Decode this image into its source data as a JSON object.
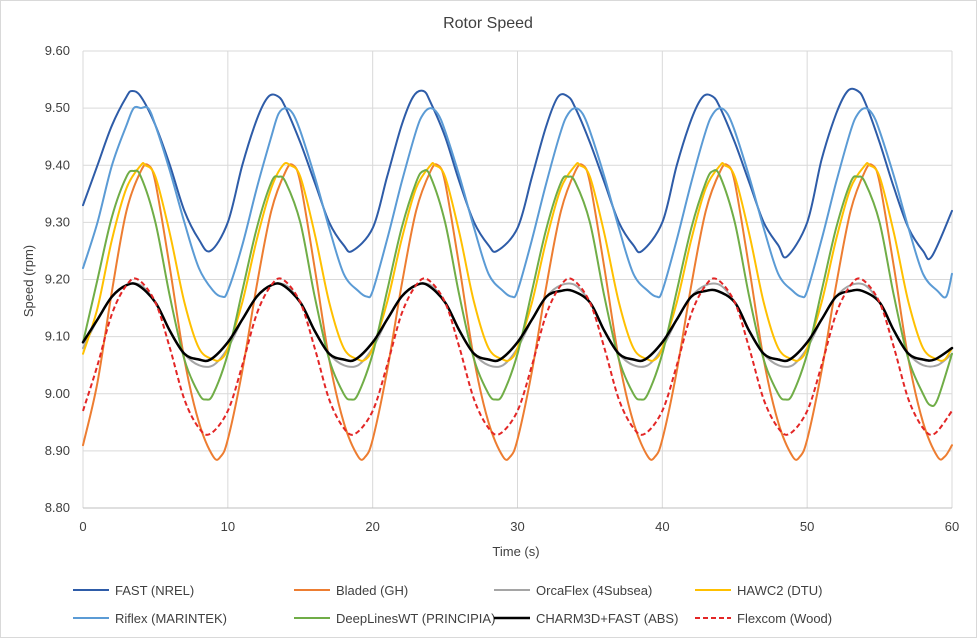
{
  "chart_data": {
    "type": "line",
    "title": "Rotor Speed",
    "xlabel": "Time (s)",
    "ylabel": "Speed (rpm)",
    "xlim": [
      0,
      60
    ],
    "ylim": [
      8.8,
      9.6
    ],
    "xticks": [
      0,
      10,
      20,
      30,
      40,
      50,
      60
    ],
    "xtick_labels": [
      "0",
      "10",
      "20",
      "30",
      "40",
      "50",
      "60"
    ],
    "yticks": [
      8.8,
      8.9,
      9.0,
      9.1,
      9.2,
      9.3,
      9.4,
      9.5,
      9.6
    ],
    "ytick_labels": [
      "8.80",
      "8.90",
      "9.00",
      "9.10",
      "9.20",
      "9.30",
      "9.40",
      "9.50",
      "9.60"
    ],
    "grid": true,
    "legend_position": "bottom",
    "series": [
      {
        "name": "FAST (NREL)",
        "color": "#2e5ca8",
        "style": "solid",
        "x": [
          0,
          1,
          2,
          3,
          3.4,
          4,
          5,
          6,
          7,
          8,
          8.8,
          10,
          11,
          12,
          12.8,
          13.5,
          14,
          15,
          16,
          17,
          18,
          18.6,
          20,
          21,
          22,
          22.8,
          23.5,
          24,
          25,
          26,
          27,
          28,
          28.6,
          30,
          31,
          32,
          32.8,
          33.5,
          34,
          35,
          36,
          37,
          38,
          38.6,
          40,
          41,
          42,
          42.8,
          43.5,
          44,
          45,
          46,
          47,
          48,
          48.6,
          50,
          51,
          52,
          52.8,
          53.5,
          54,
          55,
          56,
          57,
          58,
          58.6,
          60
        ],
        "y": [
          9.33,
          9.4,
          9.47,
          9.52,
          9.53,
          9.52,
          9.47,
          9.4,
          9.32,
          9.27,
          9.25,
          9.3,
          9.4,
          9.48,
          9.52,
          9.52,
          9.5,
          9.44,
          9.37,
          9.3,
          9.26,
          9.25,
          9.29,
          9.38,
          9.47,
          9.52,
          9.53,
          9.51,
          9.45,
          9.37,
          9.3,
          9.26,
          9.25,
          9.29,
          9.38,
          9.47,
          9.52,
          9.52,
          9.5,
          9.44,
          9.37,
          9.3,
          9.26,
          9.25,
          9.3,
          9.4,
          9.48,
          9.52,
          9.52,
          9.5,
          9.44,
          9.37,
          9.3,
          9.26,
          9.24,
          9.3,
          9.41,
          9.49,
          9.53,
          9.53,
          9.51,
          9.44,
          9.36,
          9.29,
          9.25,
          9.24,
          9.32
        ]
      },
      {
        "name": "Bladed (GH)",
        "color": "#ed7d31",
        "style": "solid",
        "x": [
          0,
          1,
          2,
          3,
          4,
          4.5,
          5,
          6,
          7,
          8,
          9,
          9.5,
          10,
          11,
          12,
          13,
          14,
          14.5,
          15,
          16,
          17,
          18,
          19,
          19.5,
          20,
          21,
          22,
          23,
          24,
          24.5,
          25,
          26,
          27,
          28,
          29,
          29.5,
          30,
          31,
          32,
          33,
          34,
          34.5,
          35,
          36,
          37,
          38,
          39,
          39.5,
          40,
          41,
          42,
          43,
          44,
          44.5,
          45,
          46,
          47,
          48,
          49,
          49.5,
          50,
          51,
          52,
          53,
          54,
          54.5,
          55,
          56,
          57,
          58,
          59,
          59.5,
          60
        ],
        "y": [
          8.91,
          9.02,
          9.18,
          9.32,
          9.39,
          9.4,
          9.37,
          9.22,
          9.06,
          8.95,
          8.89,
          8.89,
          8.92,
          9.04,
          9.19,
          9.32,
          9.39,
          9.4,
          9.37,
          9.22,
          9.06,
          8.95,
          8.89,
          8.89,
          8.92,
          9.04,
          9.19,
          9.32,
          9.39,
          9.4,
          9.37,
          9.22,
          9.06,
          8.95,
          8.89,
          8.89,
          8.92,
          9.04,
          9.19,
          9.32,
          9.39,
          9.4,
          9.37,
          9.22,
          9.06,
          8.95,
          8.89,
          8.89,
          8.92,
          9.04,
          9.19,
          9.32,
          9.39,
          9.4,
          9.37,
          9.22,
          9.06,
          8.95,
          8.89,
          8.89,
          8.92,
          9.04,
          9.19,
          9.32,
          9.39,
          9.4,
          9.37,
          9.22,
          9.06,
          8.95,
          8.89,
          8.89,
          8.91
        ]
      },
      {
        "name": "OrcaFlex (4Subsea)",
        "color": "#a5a5a5",
        "style": "solid",
        "x": [
          0,
          1,
          2,
          3,
          4,
          5,
          6,
          7,
          8,
          9,
          10,
          11,
          12,
          13,
          14,
          15,
          16,
          17,
          18,
          19,
          20,
          21,
          22,
          23,
          24,
          25,
          26,
          27,
          28,
          29,
          30,
          31,
          32,
          33,
          34,
          35,
          36,
          37,
          38,
          39,
          40,
          41,
          42,
          43,
          44,
          45,
          46,
          47,
          48,
          49,
          50,
          51,
          52,
          53,
          54,
          55,
          56,
          57,
          58,
          59,
          60
        ],
        "y": [
          9.08,
          9.13,
          9.17,
          9.19,
          9.19,
          9.16,
          9.11,
          9.07,
          9.05,
          9.05,
          9.08,
          9.13,
          9.17,
          9.19,
          9.19,
          9.16,
          9.11,
          9.07,
          9.05,
          9.05,
          9.08,
          9.13,
          9.17,
          9.19,
          9.19,
          9.16,
          9.11,
          9.07,
          9.05,
          9.05,
          9.08,
          9.13,
          9.17,
          9.19,
          9.19,
          9.16,
          9.11,
          9.07,
          9.05,
          9.05,
          9.08,
          9.13,
          9.17,
          9.19,
          9.19,
          9.16,
          9.11,
          9.07,
          9.05,
          9.05,
          9.08,
          9.13,
          9.17,
          9.19,
          9.19,
          9.16,
          9.11,
          9.07,
          9.05,
          9.05,
          9.07
        ]
      },
      {
        "name": "HAWC2 (DTU)",
        "color": "#ffc000",
        "style": "solid",
        "x": [
          0,
          1,
          2,
          3,
          4,
          4.3,
          5,
          6,
          7,
          8,
          9,
          9.5,
          10,
          11,
          12,
          13,
          13.8,
          14.3,
          15,
          16,
          17,
          18,
          19,
          19.5,
          20,
          21,
          22,
          23,
          24,
          24.3,
          25,
          26,
          27,
          28,
          29,
          29.5,
          30,
          31,
          32,
          33,
          34,
          34.3,
          35,
          36,
          37,
          38,
          39,
          39.5,
          40,
          41,
          42,
          43,
          44,
          44.3,
          45,
          46,
          47,
          48,
          49,
          49.5,
          50,
          51,
          52,
          53,
          54,
          54.3,
          55,
          56,
          57,
          58,
          59,
          59.5,
          60
        ],
        "y": [
          9.07,
          9.15,
          9.27,
          9.36,
          9.4,
          9.4,
          9.38,
          9.28,
          9.16,
          9.08,
          9.06,
          9.06,
          9.08,
          9.16,
          9.27,
          9.36,
          9.4,
          9.4,
          9.38,
          9.28,
          9.16,
          9.08,
          9.06,
          9.06,
          9.08,
          9.16,
          9.27,
          9.36,
          9.4,
          9.4,
          9.38,
          9.28,
          9.16,
          9.08,
          9.06,
          9.06,
          9.08,
          9.16,
          9.27,
          9.36,
          9.4,
          9.4,
          9.38,
          9.28,
          9.16,
          9.08,
          9.06,
          9.06,
          9.08,
          9.16,
          9.27,
          9.36,
          9.4,
          9.4,
          9.38,
          9.28,
          9.16,
          9.08,
          9.06,
          9.06,
          9.08,
          9.16,
          9.27,
          9.36,
          9.4,
          9.4,
          9.38,
          9.28,
          9.16,
          9.08,
          9.06,
          9.06,
          9.08
        ]
      },
      {
        "name": "Riflex (MARINTEK)",
        "color": "#5b9bd5",
        "style": "solid",
        "x": [
          0,
          1,
          2,
          3,
          3.5,
          4,
          4.5,
          5,
          6,
          7,
          8,
          9,
          9.6,
          10,
          11,
          12,
          13,
          13.5,
          14,
          14.5,
          15,
          16,
          17,
          18,
          19,
          19.6,
          20,
          21,
          22,
          23,
          23.5,
          24,
          24.5,
          25,
          26,
          27,
          28,
          29,
          29.6,
          30,
          31,
          32,
          33,
          33.5,
          34,
          34.5,
          35,
          36,
          37,
          38,
          39,
          39.6,
          40,
          41,
          42,
          43,
          43.5,
          44,
          44.5,
          45,
          46,
          47,
          48,
          49,
          49.6,
          50,
          51,
          52,
          53,
          53.5,
          54,
          54.5,
          55,
          56,
          57,
          58,
          59,
          59.6,
          60
        ],
        "y": [
          9.22,
          9.3,
          9.4,
          9.47,
          9.5,
          9.5,
          9.5,
          9.47,
          9.39,
          9.3,
          9.22,
          9.18,
          9.17,
          9.18,
          9.26,
          9.36,
          9.45,
          9.49,
          9.5,
          9.49,
          9.46,
          9.38,
          9.29,
          9.21,
          9.18,
          9.17,
          9.18,
          9.27,
          9.37,
          9.46,
          9.49,
          9.5,
          9.49,
          9.46,
          9.38,
          9.29,
          9.21,
          9.18,
          9.17,
          9.18,
          9.27,
          9.37,
          9.46,
          9.49,
          9.5,
          9.49,
          9.46,
          9.38,
          9.29,
          9.21,
          9.18,
          9.17,
          9.18,
          9.27,
          9.37,
          9.46,
          9.49,
          9.5,
          9.49,
          9.46,
          9.38,
          9.29,
          9.21,
          9.18,
          9.17,
          9.18,
          9.27,
          9.37,
          9.46,
          9.49,
          9.5,
          9.49,
          9.46,
          9.38,
          9.29,
          9.21,
          9.18,
          9.17,
          9.21
        ]
      },
      {
        "name": "DeepLinesWT (PRINCIPIA)",
        "color": "#70ad47",
        "style": "solid",
        "x": [
          0,
          1,
          2,
          3,
          3.5,
          4,
          5,
          6,
          7,
          8,
          8.5,
          9,
          10,
          11,
          12,
          13,
          13.5,
          14,
          15,
          16,
          17,
          18,
          18.5,
          19,
          20,
          21,
          22,
          23,
          23.5,
          24,
          25,
          26,
          27,
          28,
          28.5,
          29,
          30,
          31,
          32,
          33,
          33.5,
          34,
          35,
          36,
          37,
          38,
          38.5,
          39,
          40,
          41,
          42,
          43,
          43.5,
          44,
          45,
          46,
          47,
          48,
          48.5,
          49,
          50,
          51,
          52,
          53,
          53.5,
          54,
          55,
          56,
          57,
          58,
          58.5,
          59,
          60
        ],
        "y": [
          9.09,
          9.2,
          9.31,
          9.38,
          9.39,
          9.38,
          9.3,
          9.17,
          9.06,
          9.0,
          8.99,
          9.0,
          9.07,
          9.18,
          9.29,
          9.37,
          9.38,
          9.37,
          9.3,
          9.17,
          9.06,
          9.0,
          8.99,
          9.0,
          9.07,
          9.18,
          9.29,
          9.37,
          9.39,
          9.38,
          9.3,
          9.17,
          9.06,
          9.0,
          8.99,
          9.0,
          9.07,
          9.18,
          9.29,
          9.37,
          9.38,
          9.37,
          9.3,
          9.17,
          9.06,
          9.0,
          8.99,
          9.0,
          9.07,
          9.18,
          9.29,
          9.37,
          9.39,
          9.38,
          9.3,
          9.17,
          9.06,
          9.0,
          8.99,
          9.0,
          9.07,
          9.18,
          9.29,
          9.37,
          9.38,
          9.37,
          9.3,
          9.17,
          9.06,
          9.0,
          8.98,
          8.99,
          9.07
        ]
      },
      {
        "name": "CHARM3D+FAST (ABS)",
        "color": "#000000",
        "style": "solid",
        "x": [
          0,
          1,
          2,
          3,
          3.8,
          5,
          6,
          7,
          8,
          8.8,
          10,
          11,
          12,
          13,
          13.8,
          15,
          16,
          17,
          18,
          18.8,
          20,
          21,
          22,
          23,
          23.8,
          25,
          26,
          27,
          28,
          28.8,
          30,
          31,
          32,
          33,
          33.8,
          35,
          36,
          37,
          38,
          38.8,
          40,
          41,
          42,
          43,
          43.8,
          45,
          46,
          47,
          48,
          48.8,
          50,
          51,
          52,
          53,
          53.8,
          55,
          56,
          57,
          58,
          58.8,
          60
        ],
        "y": [
          9.09,
          9.13,
          9.17,
          9.19,
          9.19,
          9.16,
          9.11,
          9.07,
          9.06,
          9.06,
          9.09,
          9.13,
          9.17,
          9.19,
          9.19,
          9.16,
          9.11,
          9.07,
          9.06,
          9.06,
          9.09,
          9.13,
          9.17,
          9.19,
          9.19,
          9.16,
          9.11,
          9.07,
          9.06,
          9.06,
          9.09,
          9.13,
          9.17,
          9.18,
          9.18,
          9.16,
          9.11,
          9.07,
          9.06,
          9.06,
          9.09,
          9.13,
          9.17,
          9.18,
          9.18,
          9.16,
          9.11,
          9.07,
          9.06,
          9.06,
          9.09,
          9.13,
          9.17,
          9.18,
          9.18,
          9.16,
          9.11,
          9.07,
          9.06,
          9.06,
          9.08
        ]
      },
      {
        "name": "Flexcom (Wood)",
        "color": "#e32626",
        "style": "dashed",
        "x": [
          0,
          1,
          2,
          3,
          3.8,
          5,
          6,
          7,
          8,
          8.8,
          10,
          11,
          12,
          13,
          13.8,
          15,
          16,
          17,
          18,
          18.8,
          20,
          21,
          22,
          23,
          23.8,
          25,
          26,
          27,
          28,
          28.8,
          30,
          31,
          32,
          33,
          33.8,
          35,
          36,
          37,
          38,
          38.8,
          40,
          41,
          42,
          43,
          43.8,
          45,
          46,
          47,
          48,
          48.8,
          50,
          51,
          52,
          53,
          53.8,
          55,
          56,
          57,
          58,
          58.8,
          60
        ],
        "y": [
          8.97,
          9.05,
          9.14,
          9.19,
          9.2,
          9.16,
          9.08,
          8.99,
          8.94,
          8.93,
          8.97,
          9.05,
          9.14,
          9.19,
          9.2,
          9.16,
          9.08,
          8.99,
          8.94,
          8.93,
          8.97,
          9.05,
          9.14,
          9.19,
          9.2,
          9.16,
          9.08,
          8.99,
          8.94,
          8.93,
          8.97,
          9.05,
          9.14,
          9.19,
          9.2,
          9.16,
          9.08,
          8.99,
          8.94,
          8.93,
          8.97,
          9.05,
          9.14,
          9.19,
          9.2,
          9.16,
          9.08,
          8.99,
          8.94,
          8.93,
          8.97,
          9.05,
          9.14,
          9.19,
          9.2,
          9.16,
          9.08,
          8.99,
          8.94,
          8.93,
          8.97
        ]
      }
    ]
  }
}
